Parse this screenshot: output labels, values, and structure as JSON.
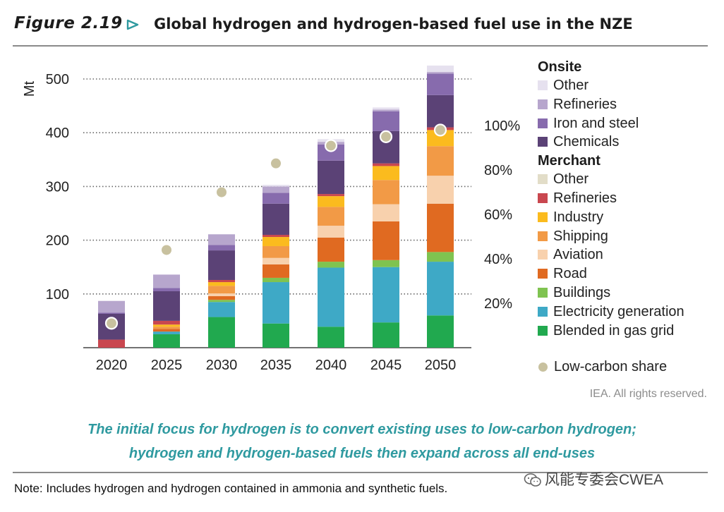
{
  "figure": {
    "label": "Figure 2.19",
    "title": "Global hydrogen and hydrogen-based fuel use in the NZE"
  },
  "chart_data": {
    "type": "bar",
    "stacked": true,
    "title": "Global hydrogen and hydrogen-based fuel use in the NZE",
    "ylabel": "Mt",
    "ylim": [
      0,
      500
    ],
    "yticks": [
      "100",
      "200",
      "300",
      "400",
      "500"
    ],
    "y2lim": [
      0,
      1.2
    ],
    "y2ticks": [
      "20%",
      "40%",
      "60%",
      "80%",
      "100%"
    ],
    "categories": [
      "2020",
      "2025",
      "2030",
      "2035",
      "2040",
      "2045",
      "2050"
    ],
    "series": [
      {
        "name": "Blended in gas grid",
        "group": "Merchant",
        "color": "#21a94f",
        "values": [
          0,
          25,
          57,
          45,
          39,
          47,
          60
        ]
      },
      {
        "name": "Electricity generation",
        "group": "Merchant",
        "color": "#3ea9c6",
        "values": [
          0,
          5,
          28,
          77,
          110,
          103,
          100
        ]
      },
      {
        "name": "Buildings",
        "group": "Merchant",
        "color": "#7fc350",
        "values": [
          0,
          0,
          4,
          8,
          11,
          13,
          18
        ]
      },
      {
        "name": "Road",
        "group": "Merchant",
        "color": "#e06a21",
        "values": [
          0,
          5,
          7,
          25,
          45,
          72,
          90
        ]
      },
      {
        "name": "Aviation",
        "group": "Merchant",
        "color": "#f8d1ad",
        "values": [
          0,
          0,
          5,
          12,
          22,
          32,
          52
        ]
      },
      {
        "name": "Shipping",
        "group": "Merchant",
        "color": "#f29a46",
        "values": [
          0,
          4,
          14,
          22,
          35,
          45,
          55
        ]
      },
      {
        "name": "Industry",
        "group": "Merchant",
        "color": "#fbbb1e",
        "values": [
          0,
          4,
          7,
          17,
          20,
          26,
          30
        ]
      },
      {
        "name": "Refineries",
        "group": "Merchant",
        "color": "#c9474f",
        "values": [
          15,
          7,
          4,
          4,
          4,
          5,
          5
        ]
      },
      {
        "name": "Other",
        "group": "Merchant",
        "color": "#e2ddc8",
        "values": [
          0,
          0,
          0,
          0,
          0,
          0,
          0
        ]
      },
      {
        "name": "Chemicals",
        "group": "Onsite",
        "color": "#5b4276",
        "values": [
          48,
          55,
          55,
          58,
          62,
          60,
          60
        ]
      },
      {
        "name": "Iron and steel",
        "group": "Onsite",
        "color": "#876bad",
        "values": [
          2,
          6,
          10,
          20,
          30,
          37,
          40
        ]
      },
      {
        "name": "Refineries",
        "group": "Onsite",
        "color": "#b7a6cd",
        "values": [
          22,
          25,
          20,
          12,
          5,
          3,
          3
        ]
      },
      {
        "name": "Other",
        "group": "Onsite",
        "color": "#e6e1ef",
        "values": [
          0,
          0,
          0,
          3,
          5,
          4,
          12
        ]
      }
    ],
    "low_carbon_share": {
      "name": "Low-carbon share",
      "color": "#c8c19f",
      "values": [
        0.11,
        0.44,
        0.7,
        0.83,
        0.91,
        0.95,
        0.98
      ]
    },
    "legend_position": "right"
  },
  "legend": {
    "onsite_heading": "Onsite",
    "onsite_items": [
      {
        "label": "Other",
        "color": "#e6e1ef"
      },
      {
        "label": "Refineries",
        "color": "#b7a6cd"
      },
      {
        "label": "Iron and steel",
        "color": "#876bad"
      },
      {
        "label": "Chemicals",
        "color": "#5b4276"
      }
    ],
    "merchant_heading": "Merchant",
    "merchant_items": [
      {
        "label": "Other",
        "color": "#e2ddc8"
      },
      {
        "label": "Refineries",
        "color": "#c9474f"
      },
      {
        "label": "Industry",
        "color": "#fbbb1e"
      },
      {
        "label": "Shipping",
        "color": "#f29a46"
      },
      {
        "label": "Aviation",
        "color": "#f8d1ad"
      },
      {
        "label": "Road",
        "color": "#e06a21"
      },
      {
        "label": "Buildings",
        "color": "#7fc350"
      },
      {
        "label": "Electricity generation",
        "color": "#3ea9c6"
      },
      {
        "label": "Blended in gas grid",
        "color": "#21a94f"
      }
    ],
    "low_carbon_label": "Low-carbon share",
    "low_carbon_color": "#c8c19f"
  },
  "rights": "IEA. All rights reserved.",
  "caption": {
    "line1": "The initial focus for hydrogen is to convert existing uses to low-carbon hydrogen;",
    "line2": "hydrogen and hydrogen-based fuels then expand across all end-uses"
  },
  "note": "Note: Includes hydrogen and hydrogen contained in ammonia and synthetic fuels.",
  "watermark": "风能专委会CWEA",
  "colors": {
    "accent": "#2f9aa0",
    "rule": "#8a8a8a",
    "grid": "#666666"
  }
}
